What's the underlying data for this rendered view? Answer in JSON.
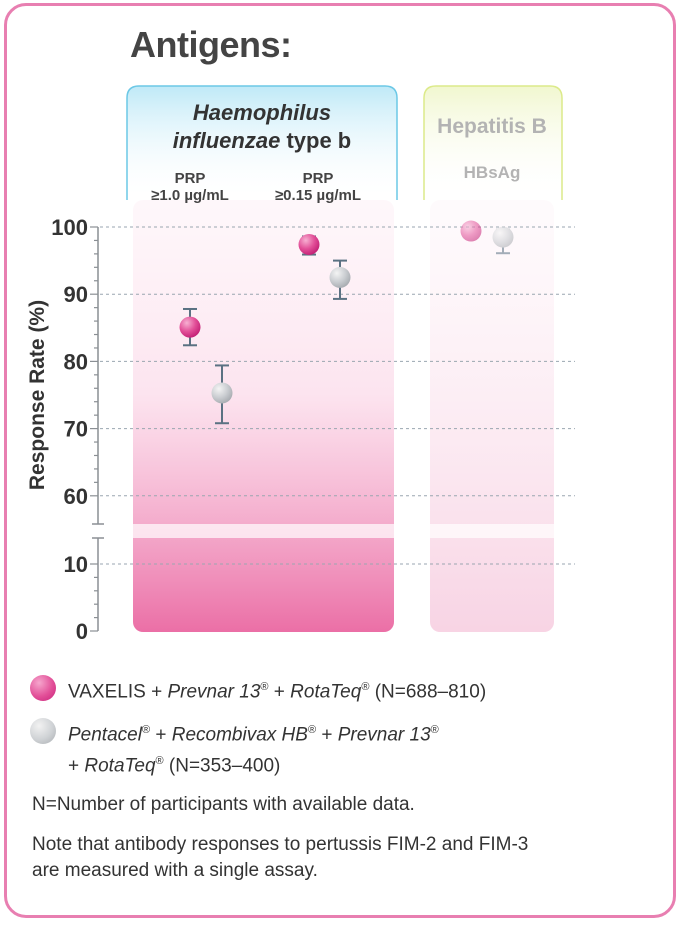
{
  "title": "Antigens:",
  "colors": {
    "frame": "#e87fb1",
    "vaxelis_series": "#e24f98",
    "comparator_series": "#c9ccd0",
    "error_bar": "#5a7182",
    "hib_panel_border": "#5ec8e8",
    "hepb_panel_border": "#dfee8a",
    "axis_text": "#333333"
  },
  "chart_data": {
    "type": "scatter",
    "ylabel": "Response Rate (%)",
    "y_ticks": [
      "0",
      "10",
      "60",
      "70",
      "80",
      "90",
      "100"
    ],
    "y_axis_break": "between 10 and 60",
    "grid": true,
    "grid_style": "dashed horizontal",
    "panels": [
      {
        "title_line1": "Haemophilus",
        "title_line2_italic": "influenzae",
        "title_line2_rest": " type b",
        "groups": [
          {
            "label_line1": "PRP",
            "label_line2": "≥1.0 µg/mL"
          },
          {
            "label_line1": "PRP",
            "label_line2": "≥0.15 µg/mL"
          }
        ]
      },
      {
        "title_line1": "Hepatitis B",
        "groups": [
          {
            "label_line1": "HBsAg"
          }
        ]
      }
    ],
    "series": [
      {
        "name": "VAXELIS + Prevnar 13® + RotaTeq® (N=688–810)",
        "points": [
          {
            "group": "PRP ≥1.0 µg/mL",
            "y": 85.1,
            "ci": [
              82.4,
              87.8
            ]
          },
          {
            "group": "PRP ≥0.15 µg/mL",
            "y": 97.4,
            "ci": [
              95.9,
              98.6
            ]
          },
          {
            "group": "HBsAg",
            "y": 99.4,
            "ci": [
              98.5,
              99.8
            ]
          }
        ]
      },
      {
        "name": "Pentacel® + Recombivax HB® + Prevnar 13® + RotaTeq® (N=353–400)",
        "points": [
          {
            "group": "PRP ≥1.0 µg/mL",
            "y": 75.3,
            "ci": [
              70.8,
              79.4
            ]
          },
          {
            "group": "PRP ≥0.15 µg/mL",
            "y": 92.5,
            "ci": [
              89.3,
              95.0
            ]
          },
          {
            "group": "HBsAg",
            "y": 98.5,
            "ci": [
              96.1,
              99.6
            ]
          }
        ]
      }
    ]
  },
  "legend": {
    "vaxelis": {
      "part1": "VAXELIS + ",
      "part2": "Prevnar 13",
      "reg1": "®",
      "part3": " + ",
      "part4": "RotaTeq",
      "reg2": "®",
      "part5": " (N=688–810)"
    },
    "comparator": {
      "line1_part1": "Pentacel",
      "reg1": "®",
      "line1_part2": " + ",
      "line1_part3": "Recombivax HB",
      "reg2": "®",
      "line1_part4": " + ",
      "line1_part5": "Prevnar 13",
      "reg3": "®",
      "line2_part1": "+ ",
      "line2_part2": "RotaTeq",
      "reg4": "®",
      "line2_part3": " (N=353–400)"
    }
  },
  "notes": [
    "N=Number of participants with available data.",
    "Note that antibody responses to pertussis FIM-2 and FIM-3 are measured with a single assay."
  ]
}
